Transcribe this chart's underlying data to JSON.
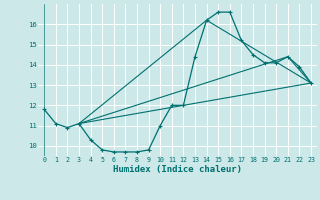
{
  "background_color": "#cce8e8",
  "grid_color": "#ffffff",
  "line_color": "#007070",
  "ylim": [
    9.5,
    17.0
  ],
  "xlim": [
    -0.5,
    23.5
  ],
  "yticks": [
    10,
    11,
    12,
    13,
    14,
    15,
    16
  ],
  "xticks": [
    0,
    1,
    2,
    3,
    4,
    5,
    6,
    7,
    8,
    9,
    10,
    11,
    12,
    13,
    14,
    15,
    16,
    17,
    18,
    19,
    20,
    21,
    22,
    23
  ],
  "xlabel": "Humidex (Indice chaleur)",
  "line1_x": [
    0,
    1,
    2,
    3,
    4,
    5,
    6,
    7,
    8,
    9,
    10,
    11,
    12,
    13,
    14,
    15,
    16,
    17,
    18,
    19,
    20,
    21,
    22,
    23
  ],
  "line1_y": [
    11.8,
    11.1,
    10.9,
    11.1,
    10.3,
    9.8,
    9.7,
    9.7,
    9.7,
    9.8,
    11.0,
    12.0,
    12.0,
    14.4,
    16.2,
    16.6,
    16.6,
    15.2,
    14.5,
    14.1,
    14.1,
    14.4,
    13.9,
    13.1
  ],
  "line2_x": [
    3,
    23
  ],
  "line2_y": [
    11.1,
    13.1
  ],
  "line3_x": [
    3,
    14,
    23
  ],
  "line3_y": [
    11.1,
    16.2,
    13.1
  ],
  "line4_x": [
    3,
    21,
    23
  ],
  "line4_y": [
    11.1,
    14.4,
    13.1
  ]
}
